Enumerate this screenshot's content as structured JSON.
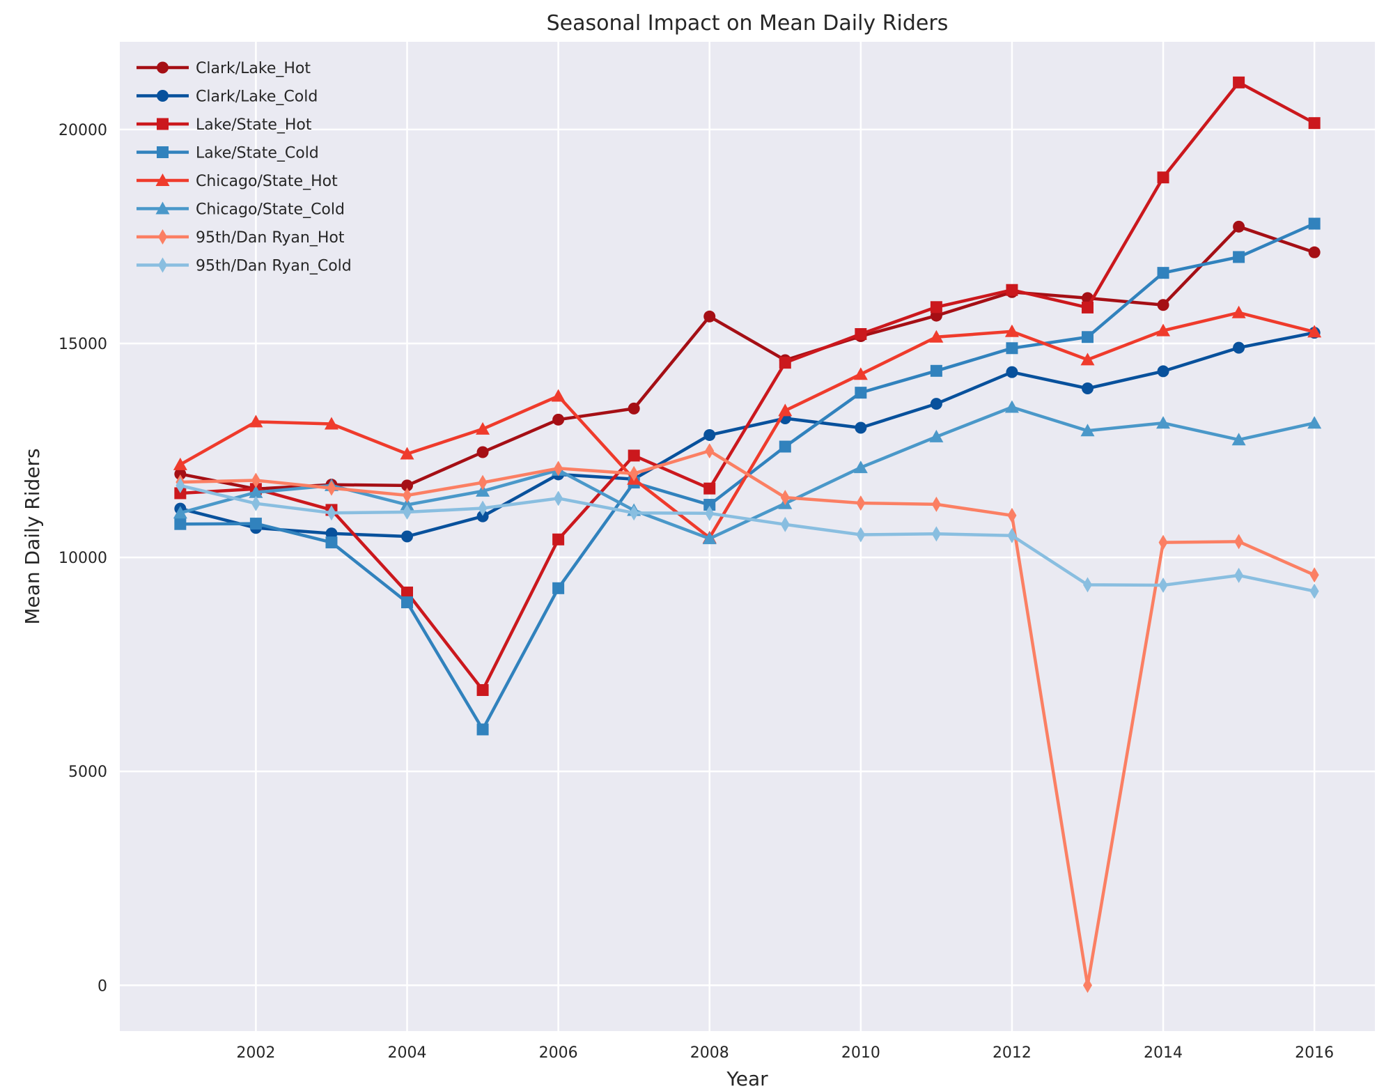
{
  "chart_data": {
    "type": "line",
    "title": "Seasonal Impact on Mean Daily Riders",
    "xlabel": "Year",
    "ylabel": "Mean Daily Riders",
    "xlim": [
      2000.2,
      2016.8
    ],
    "ylim": [
      -1070,
      22050
    ],
    "xticks": [
      2002,
      2004,
      2006,
      2008,
      2010,
      2012,
      2014,
      2016
    ],
    "yticks": [
      0,
      5000,
      10000,
      15000,
      20000
    ],
    "grid": true,
    "legend_position": "top-left",
    "x": [
      2001,
      2002,
      2003,
      2004,
      2005,
      2006,
      2007,
      2008,
      2009,
      2010,
      2011,
      2012,
      2013,
      2014,
      2015,
      2016
    ],
    "series": [
      {
        "name": "Clark/Lake_Hot",
        "color": "#a50f15",
        "marker": "circle",
        "values": [
          11950,
          11600,
          11700,
          11680,
          12460,
          13220,
          13480,
          15630,
          14610,
          15170,
          15650,
          16200,
          16060,
          15900,
          17730,
          17130
        ]
      },
      {
        "name": "Clark/Lake_Cold",
        "color": "#08519c",
        "marker": "circle",
        "values": [
          11140,
          10690,
          10560,
          10490,
          10960,
          11940,
          11830,
          12860,
          13250,
          13030,
          13590,
          14330,
          13950,
          14350,
          14900,
          15250
        ]
      },
      {
        "name": "Lake/State_Hot",
        "color": "#cb181d",
        "marker": "square",
        "values": [
          11500,
          11600,
          11110,
          9180,
          6900,
          10420,
          12380,
          11610,
          14550,
          15220,
          15850,
          16250,
          15840,
          18880,
          21100,
          20150
        ]
      },
      {
        "name": "Lake/State_Cold",
        "color": "#3182bd",
        "marker": "square",
        "values": [
          10780,
          10790,
          10350,
          8950,
          5980,
          9280,
          11750,
          11230,
          12590,
          13850,
          14360,
          14890,
          15150,
          16650,
          17020,
          17800
        ]
      },
      {
        "name": "Chicago/State_Hot",
        "color": "#ef3b2c",
        "marker": "triangle",
        "values": [
          12170,
          13170,
          13120,
          12420,
          13000,
          13770,
          11830,
          10460,
          13430,
          14280,
          15150,
          15280,
          14620,
          15300,
          15720,
          15270
        ]
      },
      {
        "name": "Chicago/State_Cold",
        "color": "#4a98c9",
        "marker": "triangle",
        "values": [
          11040,
          11520,
          11680,
          11230,
          11550,
          12040,
          11100,
          10440,
          11260,
          12100,
          12820,
          13510,
          12960,
          13140,
          12750,
          13140
        ]
      },
      {
        "name": "95th/Dan Ryan_Hot",
        "color": "#fb7f63",
        "marker": "thin_diamond",
        "values": [
          11760,
          11800,
          11620,
          11450,
          11750,
          12080,
          11960,
          12490,
          11400,
          11270,
          11240,
          10980,
          0,
          10350,
          10370,
          9590
        ]
      },
      {
        "name": "95th/Dan Ryan_Cold",
        "color": "#89bee0",
        "marker": "thin_diamond",
        "values": [
          11680,
          11260,
          11040,
          11060,
          11150,
          11380,
          11040,
          11030,
          10770,
          10530,
          10550,
          10510,
          9360,
          9350,
          9580,
          9210
        ]
      }
    ]
  }
}
